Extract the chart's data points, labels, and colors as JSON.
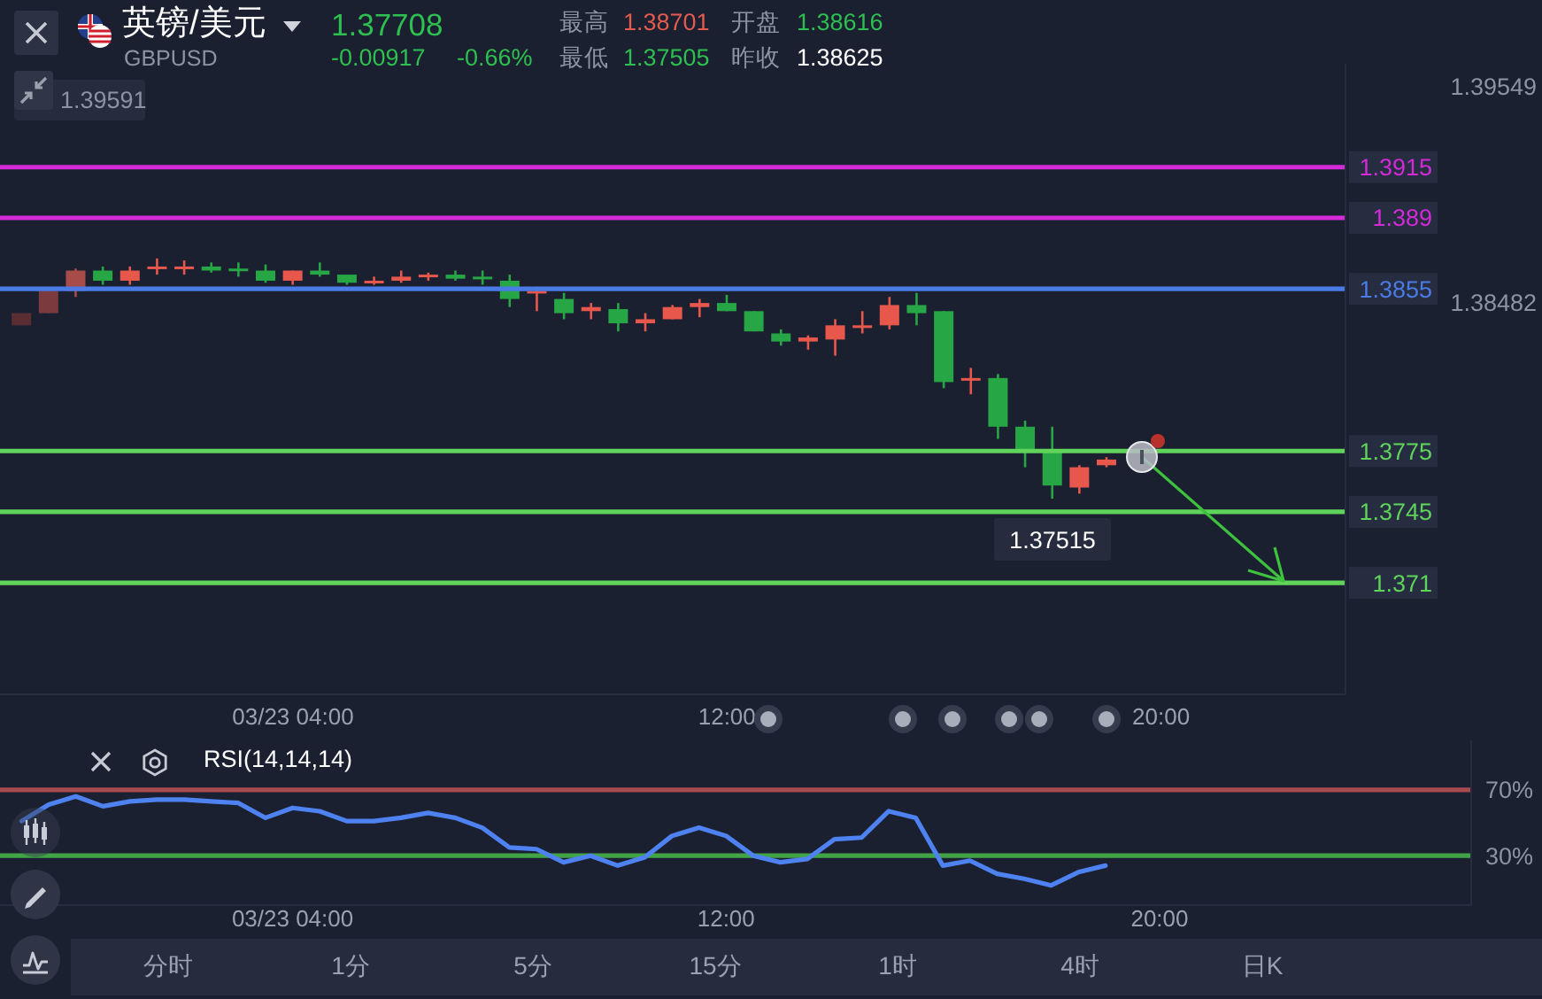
{
  "chart_data": [
    {
      "type": "candlestick",
      "title": "英镑/美元",
      "subtitle": "GBPUSD",
      "x": [
        -1,
        -0.5,
        0,
        0.5,
        1,
        1.5,
        2,
        2.5,
        3,
        3.5,
        4,
        4.5,
        5,
        5.5,
        6,
        6.5,
        7,
        7.5,
        8,
        8.5,
        9,
        9.5,
        10,
        10.5,
        11,
        11.5,
        12,
        12.5,
        13,
        13.5,
        14,
        14.5,
        15,
        15.5,
        16,
        16.5,
        17,
        17.5,
        18,
        18.5,
        19
      ],
      "ohlc": [
        [
          1.3837,
          1.3843,
          1.3837,
          1.3843
        ],
        [
          1.3843,
          1.3854,
          1.3843,
          1.3854
        ],
        [
          1.3854,
          1.3865,
          1.3851,
          1.3864
        ],
        [
          1.3864,
          1.3866,
          1.3857,
          1.3859
        ],
        [
          1.3859,
          1.3866,
          1.3857,
          1.3864
        ],
        [
          1.3865,
          1.387,
          1.3862,
          1.3866
        ],
        [
          1.3865,
          1.3869,
          1.3862,
          1.3866
        ],
        [
          1.3866,
          1.3868,
          1.3863,
          1.3864
        ],
        [
          1.3865,
          1.3868,
          1.3861,
          1.3864
        ],
        [
          1.3864,
          1.3867,
          1.3858,
          1.3859
        ],
        [
          1.3859,
          1.3864,
          1.3857,
          1.3864
        ],
        [
          1.3864,
          1.3868,
          1.3861,
          1.3862
        ],
        [
          1.3862,
          1.3862,
          1.3857,
          1.3858
        ],
        [
          1.3858,
          1.3861,
          1.3857,
          1.3859
        ],
        [
          1.3859,
          1.3864,
          1.3858,
          1.3861
        ],
        [
          1.3861,
          1.3863,
          1.3859,
          1.3862
        ],
        [
          1.3862,
          1.3864,
          1.3859,
          1.386
        ],
        [
          1.3861,
          1.3864,
          1.3857,
          1.386
        ],
        [
          1.3859,
          1.3862,
          1.3846,
          1.385
        ],
        [
          1.3853,
          1.3856,
          1.3844,
          1.3854
        ],
        [
          1.385,
          1.3853,
          1.384,
          1.3843
        ],
        [
          1.3844,
          1.3848,
          1.384,
          1.3846
        ],
        [
          1.3845,
          1.3848,
          1.3834,
          1.3838
        ],
        [
          1.3838,
          1.3843,
          1.3834,
          1.384
        ],
        [
          1.384,
          1.3847,
          1.384,
          1.3846
        ],
        [
          1.3846,
          1.385,
          1.3841,
          1.3848
        ],
        [
          1.3848,
          1.3852,
          1.3844,
          1.3844
        ],
        [
          1.3844,
          1.3844,
          1.3834,
          1.3834
        ],
        [
          1.3833,
          1.3835,
          1.3827,
          1.3829
        ],
        [
          1.3829,
          1.3832,
          1.3825,
          1.3831
        ],
        [
          1.383,
          1.384,
          1.3822,
          1.3837
        ],
        [
          1.3836,
          1.3844,
          1.3833,
          1.3837
        ],
        [
          1.3837,
          1.3851,
          1.3835,
          1.3847
        ],
        [
          1.3847,
          1.3853,
          1.3837,
          1.3843
        ],
        [
          1.3844,
          1.3844,
          1.3806,
          1.3809
        ],
        [
          1.381,
          1.3816,
          1.3803,
          1.3811
        ],
        [
          1.3811,
          1.3813,
          1.3781,
          1.3787
        ],
        [
          1.3787,
          1.379,
          1.3767,
          1.3776
        ],
        [
          1.3775,
          1.3787,
          1.37515,
          1.3758
        ],
        [
          1.3757,
          1.3768,
          1.3754,
          1.3767
        ],
        [
          1.3768,
          1.3772,
          1.3767,
          1.37708
        ]
      ],
      "colors": [
        "#5a2d33",
        "#7b3a3d",
        "#a84c4a",
        "#26a644",
        "#e8574c",
        "#e8574c",
        "#e8574c",
        "#26a644",
        "#26a644",
        "#26a644",
        "#e8574c",
        "#26a644",
        "#26a644",
        "#e8574c",
        "#e8574c",
        "#e8574c",
        "#26a644",
        "#26a644",
        "#26a644",
        "#e8574c",
        "#26a644",
        "#e8574c",
        "#26a644",
        "#e8574c",
        "#e8574c",
        "#e8574c",
        "#26a644",
        "#26a644",
        "#26a644",
        "#e8574c",
        "#e8574c",
        "#e8574c",
        "#e8574c",
        "#26a644",
        "#26a644",
        "#e8574c",
        "#26a644",
        "#26a644",
        "#26a644",
        "#e8574c",
        "#e8574c"
      ],
      "xlim": [
        -1.4,
        23.4
      ],
      "xticks": [
        {
          "value": 4,
          "label": "03/23 04:00"
        },
        {
          "value": 12,
          "label": "12:00"
        },
        {
          "value": 20,
          "label": "20:00"
        }
      ],
      "ylim": [
        1.3655,
        1.3966
      ],
      "yticks": [
        1.39549,
        1.38482
      ],
      "ref_lines": [
        {
          "axis": "y",
          "value": 1.3915,
          "label": "1.3915",
          "color": "#d42ad8"
        },
        {
          "axis": "y",
          "value": 1.389,
          "label": "1.389",
          "color": "#d42ad8"
        },
        {
          "axis": "y",
          "value": 1.3855,
          "label": "1.3855",
          "color": "#4a7be6"
        },
        {
          "axis": "y",
          "value": 1.3775,
          "label": "1.3775",
          "color": "#5fd35a"
        },
        {
          "axis": "y",
          "value": 1.3745,
          "label": "1.3745",
          "color": "#5fd35a"
        },
        {
          "axis": "y",
          "value": 1.371,
          "label": "1.371",
          "color": "#5fd35a"
        }
      ],
      "annotations": [
        "1.37708",
        "-0.00917",
        "-0.66%",
        "最高",
        "1.38701",
        "开盘",
        "1.38616",
        "最低",
        "1.37505",
        "昨收",
        "1.38625",
        "1.39591",
        {
          "text": "1.37515",
          "x": 18,
          "y": 1.37515
        }
      ]
    },
    {
      "type": "line",
      "title": "RSI(14,14,14)",
      "x": [
        -1,
        -0.5,
        0,
        0.5,
        1,
        1.5,
        2,
        2.5,
        3,
        3.5,
        4,
        4.5,
        5,
        5.5,
        6,
        6.5,
        7,
        7.5,
        8,
        8.5,
        9,
        9.5,
        10,
        10.5,
        11,
        11.5,
        12,
        12.5,
        13,
        13.5,
        14,
        14.5,
        15,
        15.5,
        16,
        16.5,
        17,
        17.5,
        18,
        18.5,
        19
      ],
      "series": [
        {
          "color": "#4d82f0",
          "values": [
            51,
            61,
            66,
            60,
            63,
            64,
            64,
            63,
            62,
            53,
            59,
            57,
            51,
            51,
            53,
            56,
            53,
            47,
            35,
            34,
            26,
            30,
            24,
            29,
            42,
            47,
            42,
            30,
            26,
            28,
            40,
            41,
            57,
            53,
            24,
            27,
            19,
            16,
            12,
            20,
            24
          ]
        }
      ],
      "xlim": [
        -1.4,
        25.75
      ],
      "xticks": [
        {
          "value": 4,
          "label": "03/23 04:00"
        },
        {
          "value": 12,
          "label": "12:00"
        },
        {
          "value": 20,
          "label": "20:00"
        }
      ],
      "ylim": [
        0,
        100
      ],
      "yticks": [
        {
          "value": 70,
          "label": "70%"
        },
        {
          "value": 30,
          "label": "30%"
        }
      ],
      "ref_lines": [
        {
          "axis": "y",
          "value": 70,
          "color": "#a84a50"
        },
        {
          "axis": "y",
          "value": 30,
          "color": "#43a447"
        }
      ],
      "annotations": [
        "分时",
        "1分",
        "5分",
        "15分",
        "1时",
        "4时",
        "日K"
      ]
    }
  ]
}
